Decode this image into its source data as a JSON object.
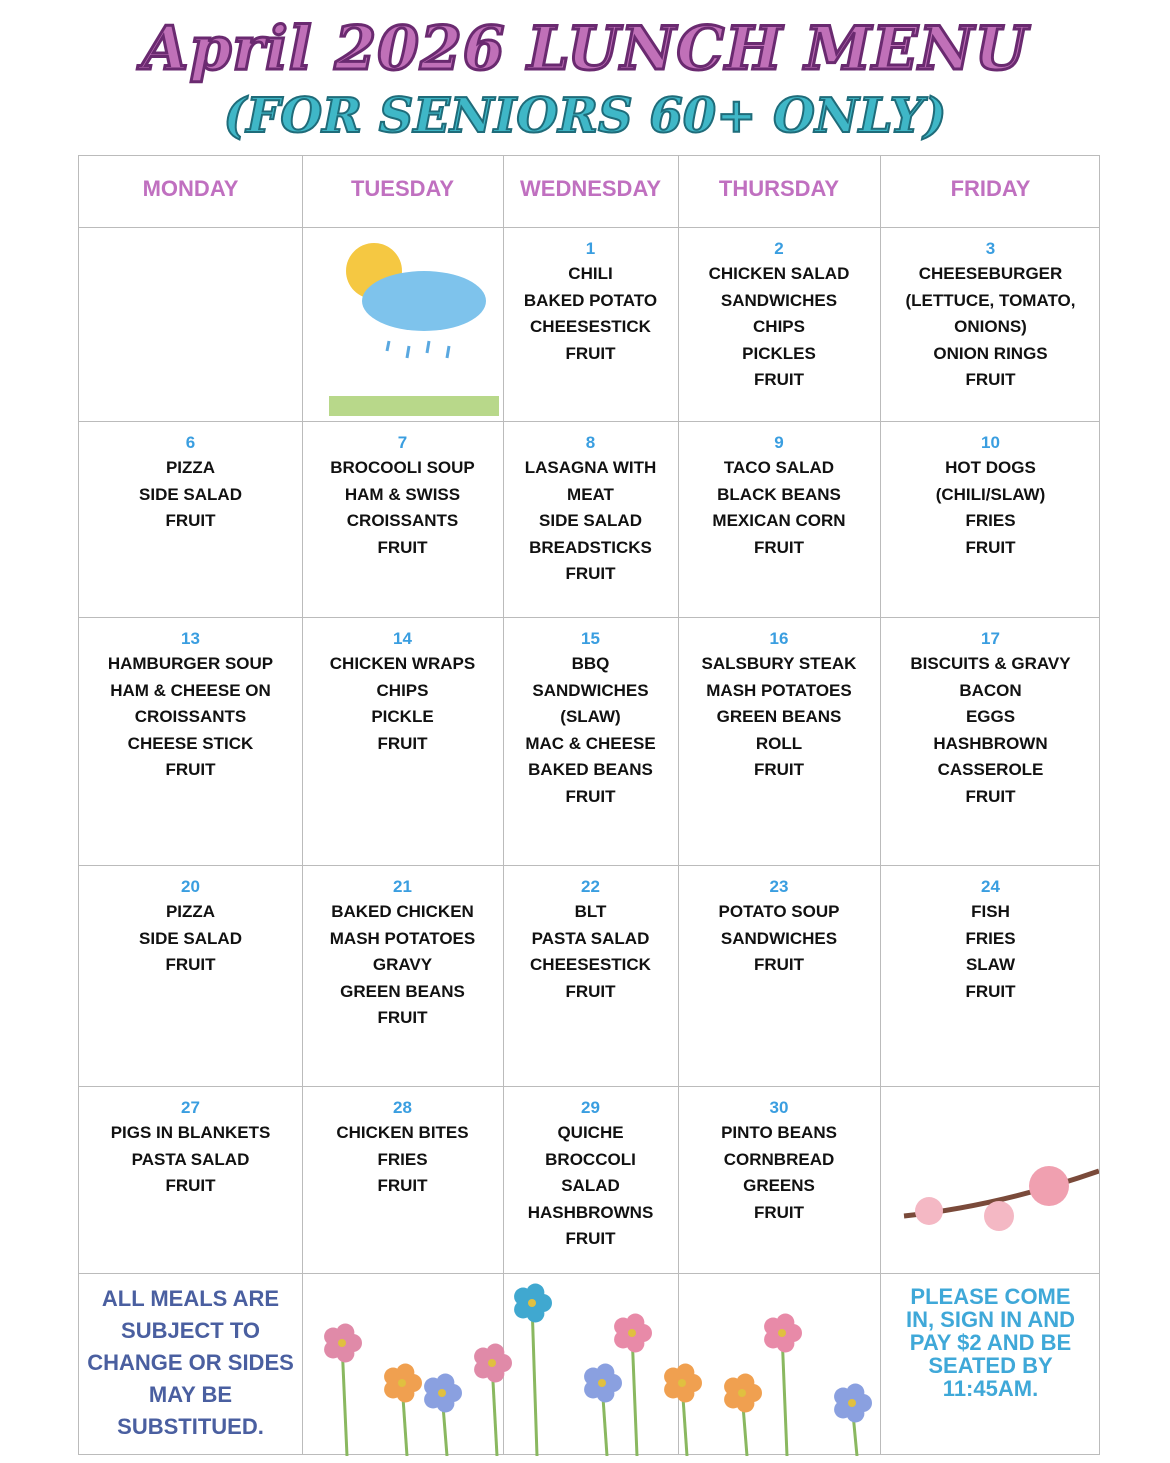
{
  "header": {
    "title": "April 2026 LUNCH MENU",
    "subtitle": "(FOR SENIORS 60+ ONLY)"
  },
  "days": [
    "MONDAY",
    "TUESDAY",
    "WEDNESDAY",
    "THURSDAY",
    "FRIDAY"
  ],
  "weeks": [
    [
      null,
      null,
      {
        "day": "1",
        "items": [
          "CHILI",
          "BAKED POTATO",
          "CHEESESTICK",
          "FRUIT"
        ]
      },
      {
        "day": "2",
        "items": [
          "CHICKEN SALAD",
          "SANDWICHES",
          "CHIPS",
          "PICKLES",
          "FRUIT"
        ]
      },
      {
        "day": "3",
        "items": [
          "CHEESEBURGER",
          "(LETTUCE, TOMATO,",
          "ONIONS)",
          "ONION RINGS",
          "FRUIT"
        ]
      }
    ],
    [
      {
        "day": "6",
        "items": [
          "PIZZA",
          "SIDE SALAD",
          "FRUIT"
        ]
      },
      {
        "day": "7",
        "items": [
          "BROCOOLI SOUP",
          "HAM & SWISS",
          "CROISSANTS",
          "FRUIT"
        ]
      },
      {
        "day": "8",
        "items": [
          "LASAGNA WITH",
          "MEAT",
          "SIDE SALAD",
          "BREADSTICKS",
          "FRUIT"
        ]
      },
      {
        "day": "9",
        "items": [
          "TACO SALAD",
          "BLACK BEANS",
          "MEXICAN CORN",
          "FRUIT"
        ]
      },
      {
        "day": "10",
        "items": [
          "HOT DOGS",
          "(CHILI/SLAW)",
          "FRIES",
          "FRUIT"
        ]
      }
    ],
    [
      {
        "day": "13",
        "items": [
          "HAMBURGER SOUP",
          "HAM & CHEESE ON",
          "CROISSANTS",
          "CHEESE STICK",
          "FRUIT"
        ]
      },
      {
        "day": "14",
        "items": [
          "CHICKEN WRAPS",
          "CHIPS",
          "PICKLE",
          "FRUIT"
        ]
      },
      {
        "day": "15",
        "items": [
          "BBQ",
          "SANDWICHES",
          "(SLAW)",
          "MAC & CHEESE",
          "BAKED BEANS",
          "FRUIT"
        ]
      },
      {
        "day": "16",
        "items": [
          "SALSBURY STEAK",
          "MASH POTATOES",
          "GREEN BEANS",
          "ROLL",
          "FRUIT"
        ]
      },
      {
        "day": "17",
        "items": [
          "BISCUITS & GRAVY",
          "BACON",
          "EGGS",
          "HASHBROWN",
          "CASSEROLE",
          "FRUIT"
        ]
      }
    ],
    [
      {
        "day": "20",
        "items": [
          "PIZZA",
          "SIDE SALAD",
          "FRUIT"
        ]
      },
      {
        "day": "21",
        "items": [
          "BAKED CHICKEN",
          "MASH POTATOES",
          "GRAVY",
          "GREEN BEANS",
          "FRUIT"
        ]
      },
      {
        "day": "22",
        "items": [
          "BLT",
          "PASTA SALAD",
          "CHEESESTICK",
          "FRUIT"
        ]
      },
      {
        "day": "23",
        "items": [
          "POTATO SOUP",
          "SANDWICHES",
          "FRUIT"
        ]
      },
      {
        "day": "24",
        "items": [
          "FISH",
          "FRIES",
          "SLAW",
          "FRUIT"
        ]
      }
    ],
    [
      {
        "day": "27",
        "items": [
          "PIGS IN BLANKETS",
          "PASTA SALAD",
          "FRUIT"
        ]
      },
      {
        "day": "28",
        "items": [
          "CHICKEN BITES",
          "FRIES",
          "FRUIT"
        ]
      },
      {
        "day": "29",
        "items": [
          "QUICHE",
          "BROCCOLI",
          "SALAD",
          "HASHBROWNS",
          "FRUIT"
        ]
      },
      {
        "day": "30",
        "items": [
          "PINTO BEANS",
          "CORNBREAD",
          "GREENS",
          "FRUIT"
        ]
      },
      null
    ]
  ],
  "footer": {
    "left_note": "ALL MEALS ARE SUBJECT TO CHANGE OR SIDES MAY BE SUBSTITUED.",
    "right_note": "PLEASE COME IN, SIGN IN AND PAY $2 AND BE SEATED BY 11:45AM."
  },
  "colors": {
    "title": "#c070b8",
    "subtitle": "#3fb7c7",
    "day_header": "#c070c0",
    "date_number": "#3a9ee0",
    "left_note": "#4a5fa0",
    "right_note": "#3fa8d8"
  }
}
